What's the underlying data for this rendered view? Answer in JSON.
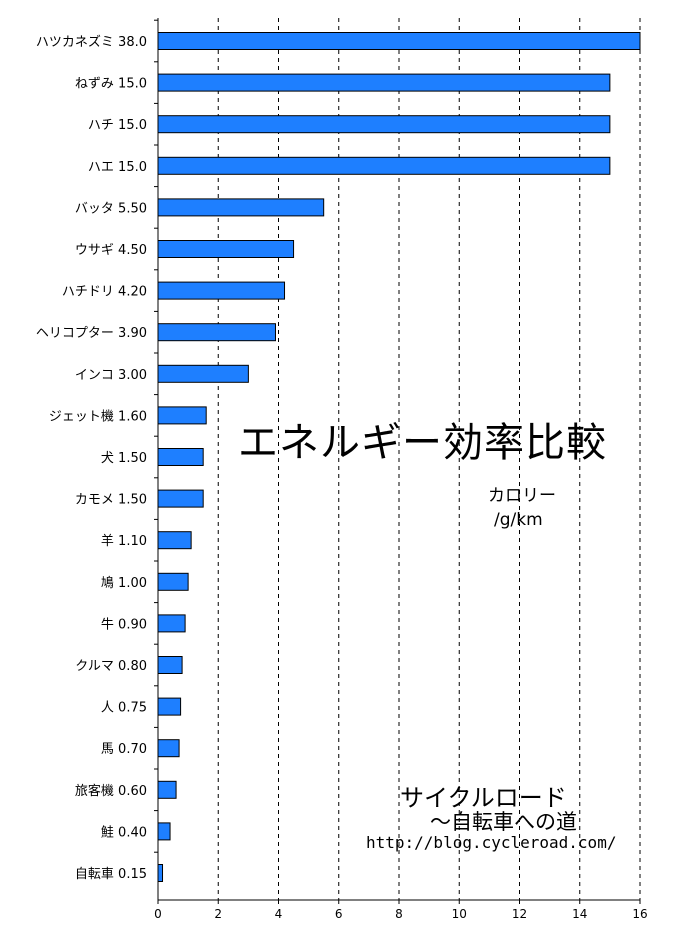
{
  "chart_data": {
    "type": "bar",
    "orientation": "horizontal",
    "title": "エネルギー効率比較",
    "unit_label": [
      "カロリー",
      "/g/km"
    ],
    "categories": [
      "ハツカネズミ",
      "ねずみ",
      "ハチ",
      "ハエ",
      "バッタ",
      "ウサギ",
      "ハチドリ",
      "ヘリコプター",
      "インコ",
      "ジェット機",
      "犬",
      "カモメ",
      "羊",
      "鳩",
      "牛",
      "クルマ",
      "人",
      "馬",
      "旅客機",
      "鮭",
      "自転車"
    ],
    "value_labels": [
      "38.0",
      "15.0",
      "15.0",
      "15.0",
      "5.50",
      "4.50",
      "4.20",
      "3.90",
      "3.00",
      "1.60",
      "1.50",
      "1.50",
      "1.10",
      "1.00",
      "0.90",
      "0.80",
      "0.75",
      "0.70",
      "0.60",
      "0.40",
      "0.15"
    ],
    "values": [
      38.0,
      15.0,
      15.0,
      15.0,
      5.5,
      4.5,
      4.2,
      3.9,
      3.0,
      1.6,
      1.5,
      1.5,
      1.1,
      1.0,
      0.9,
      0.8,
      0.75,
      0.7,
      0.6,
      0.4,
      0.15
    ],
    "xlim": [
      0,
      16
    ],
    "xticks": [
      0,
      2,
      4,
      6,
      8,
      10,
      12,
      14,
      16
    ],
    "xtick_labels": [
      "0",
      "2",
      "4",
      "6",
      "8",
      "10",
      "12",
      "14",
      "16"
    ],
    "grid": "vertical-dashed",
    "bar_color": "#1e7fff",
    "bar_edge_color": "#000000"
  },
  "credit": {
    "name": "サイクルロード",
    "subtitle": "～自転車への道",
    "url": "http://blog.cycleroad.com/"
  }
}
